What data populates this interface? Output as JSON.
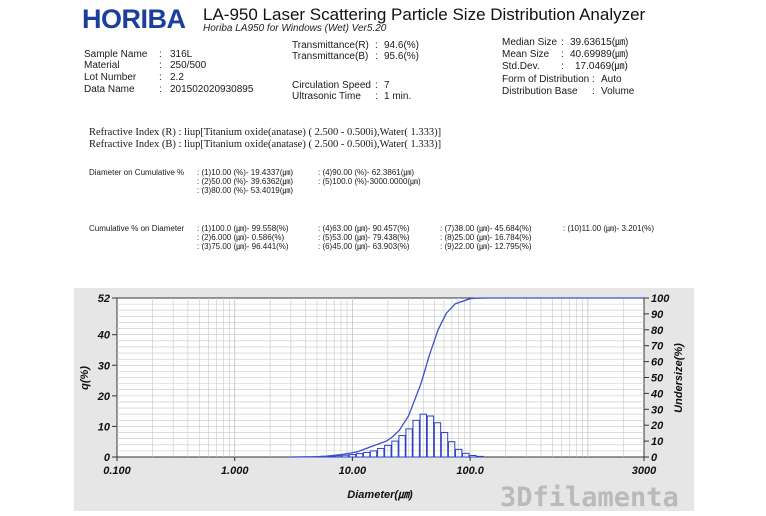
{
  "header": {
    "brand": "HORIBA",
    "title": "LA-950 Laser Scattering Particle Size Distribution Analyzer",
    "subtitle": "Horiba LA950 for Windows (Wet) Ver5.20"
  },
  "sample_info": [
    {
      "label": "Sample Name",
      "value": "316L"
    },
    {
      "label": "Material",
      "value": "250/500"
    },
    {
      "label": "Lot Number",
      "value": "2.2"
    },
    {
      "label": "Data Name",
      "value": "201502020930895"
    }
  ],
  "measurement": {
    "trans_r_label": "Transmittance(R)",
    "trans_r_value": "94.6(%)",
    "trans_b_label": "Transmittance(B)",
    "trans_b_value": "95.6(%)",
    "circ_label": "Circulation Speed",
    "circ_value": "7",
    "ultra_label": "Ultrasonic Time",
    "ultra_value": "1 min."
  },
  "stats": [
    {
      "label": "Median Size",
      "value": "39.63615(㎛)"
    },
    {
      "label": "Mean Size",
      "value": "40.69989(㎛)"
    },
    {
      "label": "Std.Dev.",
      "value": "17.0469(㎛)"
    },
    {
      "label": "Form of Distribution",
      "value": "Auto"
    },
    {
      "label": "Distribution Base",
      "value": "Volume"
    }
  ],
  "refractive": {
    "r": "Refractive Index (R)  :  liup[Titanium oxide(anatase) ( 2.500 -  0.500i),Water( 1.333)]",
    "b": "Refractive Index (B)  :  liup[Titanium oxide(anatase) ( 2.500 -  0.500i),Water( 1.333)]"
  },
  "diameter_cumulative": {
    "label": "Diameter on Cumulative %",
    "col1": [
      ": (1)10.00 (%)-  19.4337(㎛)",
      ": (2)50.00 (%)-  39.6362(㎛)",
      ": (3)80.00 (%)-  53.4019(㎛)"
    ],
    "col2": [
      ": (4)90.00 (%)-  62.3861(㎛)",
      ": (5)100.0 (%)-3000.0000(㎛)"
    ]
  },
  "cumulative_diameter": {
    "label": "Cumulative % on Diameter",
    "col1": [
      ": (1)100.0 (㎛)-    99.558(%)",
      ": (2)6.000 (㎛)-     0.586(%)",
      ": (3)75.00 (㎛)-    96.441(%)"
    ],
    "col2": [
      ": (4)63.00 (㎛)-    90.457(%)",
      ": (5)53.00 (㎛)-    79.438(%)",
      ": (6)45.00 (㎛)-    63.903(%)"
    ],
    "col3": [
      ": (7)38.00 (㎛)-    45.684(%)",
      ": (8)25.00 (㎛)-    16.784(%)",
      ": (9)22.00 (㎛)-    12.795(%)"
    ],
    "col4": [
      ": (10)11.00 (㎛)-     3.201(%)"
    ]
  },
  "watermark": "3Dfilamenta",
  "colors": {
    "brand": "#1c3f9e",
    "curve": "#3a4fd0",
    "bars": "#2a3fc8",
    "grid": "#c8c8c8",
    "plot_bg": "#ffffff",
    "panel_bg": "#e6e6e6"
  },
  "chart_data": {
    "type": "bar",
    "x_scale": "log",
    "xlim": [
      0.1,
      3000
    ],
    "x_ticks": [
      "0.100",
      "1.000",
      "10.00",
      "100.0",
      "3000"
    ],
    "x_tick_values": [
      0.1,
      1,
      10,
      100,
      3000
    ],
    "xlabel": "Diameter(㎛)",
    "ylabel_left": "q(%)",
    "ylabel_right": "Undersize(%)",
    "ylim_left": [
      0,
      52
    ],
    "ylim_right": [
      0,
      100
    ],
    "y_ticks_left": [
      0,
      10,
      20,
      30,
      40,
      52
    ],
    "y_ticks_right": [
      0,
      10,
      20,
      30,
      40,
      50,
      60,
      70,
      80,
      90,
      100
    ],
    "grid": true,
    "series": [
      {
        "kind": "bar",
        "x": [
          5.0,
          5.8,
          6.6,
          7.6,
          8.7,
          10.0,
          11.5,
          13.2,
          15.1,
          17.4,
          20.0,
          23.0,
          26.4,
          30.3,
          34.8,
          40.0,
          46.0,
          52.8,
          60.6,
          69.6,
          80.0,
          91.8,
          105.5,
          121.2
        ],
        "values": [
          0.1,
          0.2,
          0.3,
          0.4,
          0.6,
          0.8,
          1.1,
          1.5,
          2.0,
          2.8,
          3.8,
          5.2,
          7.0,
          9.2,
          12.0,
          14.0,
          13.4,
          11.2,
          8.0,
          5.0,
          2.5,
          1.2,
          0.5,
          0.2
        ]
      },
      {
        "kind": "line",
        "x": [
          3.0,
          5.0,
          6.0,
          8.0,
          11.0,
          15.0,
          19.43,
          22.0,
          25.0,
          30.0,
          38.0,
          39.64,
          45.0,
          53.0,
          53.4,
          62.39,
          63.0,
          75.0,
          100.0,
          110.0,
          150.0,
          3000.0
        ],
        "values": [
          0,
          0.2,
          0.586,
          1.5,
          3.2,
          7.0,
          10.0,
          12.8,
          16.8,
          26.0,
          45.7,
          50.0,
          63.9,
          79.4,
          80.0,
          90.0,
          90.5,
          96.4,
          99.56,
          99.9,
          100,
          100
        ]
      }
    ]
  }
}
